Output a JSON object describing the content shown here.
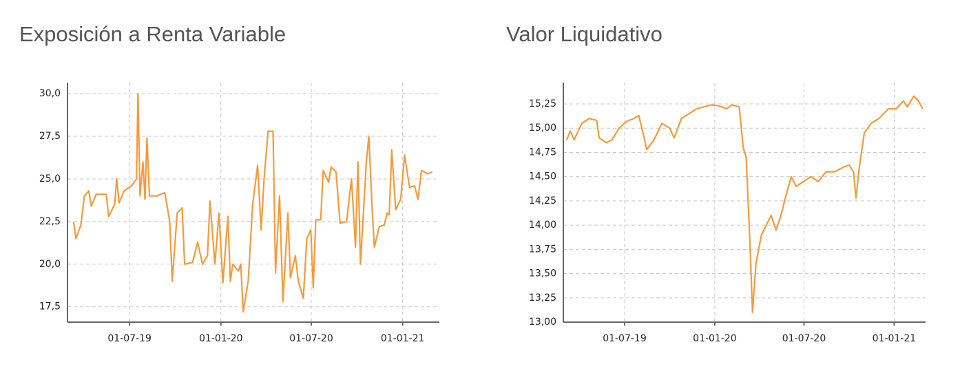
{
  "chart_data": [
    {
      "type": "line",
      "title": "Exposición a Renta Variable",
      "color": "#f7993a",
      "grid": true,
      "x": [
        "2019-03-10",
        "2019-03-15",
        "2019-03-25",
        "2019-04-01",
        "2019-04-10",
        "2019-04-15",
        "2019-04-25",
        "2019-05-15",
        "2019-05-20",
        "2019-06-01",
        "2019-06-05",
        "2019-06-10",
        "2019-06-20",
        "2019-07-05",
        "2019-07-15",
        "2019-07-18",
        "2019-07-22",
        "2019-07-28",
        "2019-08-01",
        "2019-08-05",
        "2019-08-10",
        "2019-08-25",
        "2019-09-10",
        "2019-09-20",
        "2019-09-25",
        "2019-10-05",
        "2019-10-15",
        "2019-10-20",
        "2019-11-05",
        "2019-11-15",
        "2019-11-25",
        "2019-12-05",
        "2019-12-10",
        "2019-12-20",
        "2019-12-28",
        "2020-01-05",
        "2020-01-15",
        "2020-01-20",
        "2020-01-25",
        "2020-02-05",
        "2020-02-10",
        "2020-02-15",
        "2020-02-25",
        "2020-03-05",
        "2020-03-15",
        "2020-03-22",
        "2020-03-28",
        "2020-04-05",
        "2020-04-15",
        "2020-04-20",
        "2020-04-28",
        "2020-05-05",
        "2020-05-15",
        "2020-05-20",
        "2020-05-30",
        "2020-06-05",
        "2020-06-15",
        "2020-06-22",
        "2020-06-30",
        "2020-07-05",
        "2020-07-10",
        "2020-07-20",
        "2020-07-25",
        "2020-08-05",
        "2020-08-10",
        "2020-08-20",
        "2020-08-28",
        "2020-09-10",
        "2020-09-20",
        "2020-09-28",
        "2020-10-03",
        "2020-10-08",
        "2020-10-20",
        "2020-10-25",
        "2020-11-01",
        "2020-11-05",
        "2020-11-15",
        "2020-11-25",
        "2020-12-01",
        "2020-12-05",
        "2020-12-10",
        "2020-12-18",
        "2020-12-28",
        "2021-01-05",
        "2021-01-15",
        "2021-01-25",
        "2021-02-01",
        "2021-02-08",
        "2021-02-20",
        "2021-03-02"
      ],
      "values": [
        22.5,
        21.5,
        22.3,
        24.0,
        24.3,
        23.4,
        24.1,
        24.1,
        22.8,
        23.5,
        25.0,
        23.6,
        24.3,
        24.6,
        25.0,
        30.0,
        24.0,
        26.0,
        23.8,
        27.4,
        24.0,
        24.0,
        24.2,
        22.5,
        19.0,
        23.0,
        23.3,
        20.0,
        20.1,
        21.3,
        20.0,
        20.5,
        23.7,
        20.0,
        23.0,
        18.9,
        22.8,
        19.0,
        20.0,
        19.6,
        20.0,
        17.2,
        19.0,
        23.5,
        25.8,
        22.0,
        25.0,
        27.8,
        27.8,
        19.5,
        24.0,
        17.8,
        23.0,
        19.2,
        20.5,
        19.0,
        18.0,
        21.5,
        22.0,
        18.6,
        22.6,
        22.6,
        25.5,
        24.8,
        25.7,
        25.4,
        22.4,
        22.5,
        25.0,
        21.0,
        26.0,
        20.0,
        26.0,
        27.5,
        23.0,
        21.0,
        22.2,
        22.3,
        23.0,
        22.9,
        26.7,
        23.2,
        23.8,
        26.4,
        24.5,
        24.6,
        23.8,
        25.5,
        25.3,
        25.4
      ],
      "xlim": [
        "2019-02-26",
        "2021-03-16"
      ],
      "xticks": [
        {
          "value": "2019-07-01",
          "label": "01-07-19"
        },
        {
          "value": "2020-01-01",
          "label": "01-01-20"
        },
        {
          "value": "2020-07-01",
          "label": "01-07-20"
        },
        {
          "value": "2021-01-01",
          "label": "01-01-21"
        }
      ],
      "ylim": [
        16.6,
        30.65
      ],
      "yticks": [
        {
          "value": 17.5,
          "label": "17,5"
        },
        {
          "value": 20,
          "label": "20,0"
        },
        {
          "value": 22.5,
          "label": "22,5"
        },
        {
          "value": 25,
          "label": "25,0"
        },
        {
          "value": 27.5,
          "label": "27,5"
        },
        {
          "value": 30,
          "label": "30,0"
        }
      ]
    },
    {
      "type": "line",
      "title": "Valor Liquidativo",
      "color": "#f7993a",
      "grid": true,
      "x": [
        "2019-03-05",
        "2019-03-12",
        "2019-03-20",
        "2019-04-05",
        "2019-04-20",
        "2019-05-05",
        "2019-05-10",
        "2019-05-25",
        "2019-06-05",
        "2019-06-20",
        "2019-07-05",
        "2019-07-20",
        "2019-07-30",
        "2019-08-10",
        "2019-08-15",
        "2019-08-30",
        "2019-09-15",
        "2019-10-01",
        "2019-10-10",
        "2019-10-25",
        "2019-11-10",
        "2019-11-25",
        "2019-12-10",
        "2019-12-25",
        "2020-01-10",
        "2020-01-25",
        "2020-02-05",
        "2020-02-20",
        "2020-02-28",
        "2020-03-05",
        "2020-03-12",
        "2020-03-18",
        "2020-03-25",
        "2020-04-05",
        "2020-04-15",
        "2020-04-25",
        "2020-05-05",
        "2020-05-15",
        "2020-05-25",
        "2020-06-05",
        "2020-06-15",
        "2020-06-30",
        "2020-07-15",
        "2020-07-30",
        "2020-08-15",
        "2020-09-01",
        "2020-09-20",
        "2020-10-01",
        "2020-10-10",
        "2020-10-15",
        "2020-10-22",
        "2020-11-01",
        "2020-11-15",
        "2020-12-01",
        "2020-12-20",
        "2021-01-05",
        "2021-01-20",
        "2021-01-28",
        "2021-02-10",
        "2021-02-20",
        "2021-02-28"
      ],
      "values": [
        14.88,
        14.97,
        14.88,
        15.05,
        15.1,
        15.08,
        14.9,
        14.85,
        14.88,
        15.0,
        15.07,
        15.1,
        15.13,
        14.9,
        14.78,
        14.88,
        15.05,
        15.0,
        14.9,
        15.1,
        15.15,
        15.2,
        15.22,
        15.24,
        15.23,
        15.2,
        15.24,
        15.22,
        14.8,
        14.7,
        13.9,
        13.1,
        13.6,
        13.9,
        14.0,
        14.1,
        13.95,
        14.1,
        14.3,
        14.5,
        14.4,
        14.45,
        14.5,
        14.45,
        14.55,
        14.55,
        14.6,
        14.62,
        14.55,
        14.28,
        14.6,
        14.95,
        15.05,
        15.1,
        15.2,
        15.2,
        15.28,
        15.22,
        15.33,
        15.28,
        15.2
      ],
      "xlim": [
        "2019-02-26",
        "2021-03-06"
      ],
      "xticks": [
        {
          "value": "2019-07-01",
          "label": "01-07-19"
        },
        {
          "value": "2020-01-01",
          "label": "01-01-20"
        },
        {
          "value": "2020-07-01",
          "label": "01-07-20"
        },
        {
          "value": "2021-01-01",
          "label": "01-01-21"
        }
      ],
      "ylim": [
        13.0,
        15.47
      ],
      "yticks": [
        {
          "value": 13,
          "label": "13,00"
        },
        {
          "value": 13.25,
          "label": "13,25"
        },
        {
          "value": 13.5,
          "label": "13,50"
        },
        {
          "value": 13.75,
          "label": "13,75"
        },
        {
          "value": 14,
          "label": "14,00"
        },
        {
          "value": 14.25,
          "label": "14,25"
        },
        {
          "value": 14.5,
          "label": "14,50"
        },
        {
          "value": 14.75,
          "label": "14,75"
        },
        {
          "value": 15,
          "label": "15,00"
        },
        {
          "value": 15.25,
          "label": "15,25"
        }
      ]
    }
  ]
}
